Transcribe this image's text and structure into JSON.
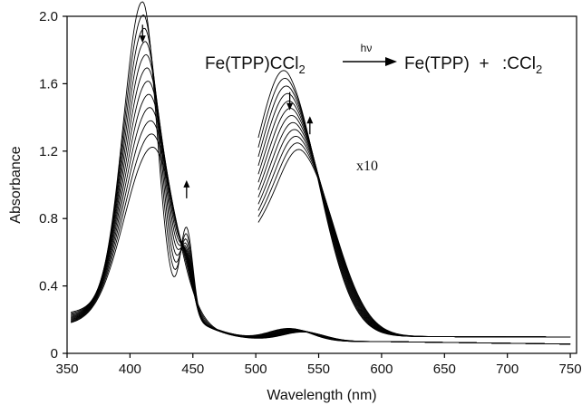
{
  "chart_data": {
    "type": "line",
    "xlabel": "Wavelength (nm)",
    "ylabel": "Absorbance",
    "xlim": [
      350,
      755
    ],
    "ylim": [
      0,
      2.0
    ],
    "x_ticks": [
      "350",
      "400",
      "450",
      "500",
      "550",
      "600",
      "650",
      "700",
      "750"
    ],
    "y_ticks": [
      "0",
      "0.4",
      "0.8",
      "1.2",
      "1.6",
      "2.0"
    ],
    "grid": false,
    "legend": "none",
    "reaction": {
      "reactant": "Fe(TPP)CCl",
      "reactant_sub": "2",
      "arrow_label": "hν",
      "product1": "Fe(TPP)",
      "plus": "+",
      "product2": ":CCl",
      "product2_sub": "2"
    },
    "scale_note": "x10",
    "series_count": 12,
    "first_spectrum": {
      "soret_peak": [
        410,
        1.8
      ],
      "sideband_peak": [
        445,
        0.75
      ],
      "q_band_x10_peak": [
        527,
        1.39
      ],
      "q_band_peak": [
        527,
        0.14
      ]
    },
    "last_spectrum": {
      "soret_peak": [
        418,
        1.03
      ],
      "q_band_x10_peak": [
        538,
        1.1
      ],
      "q_band_peak": [
        538,
        0.12
      ]
    },
    "annotations": [
      {
        "type": "arrow-down",
        "x": 410,
        "y": 1.95
      },
      {
        "type": "arrow-up",
        "x": 445,
        "y": 0.92
      },
      {
        "type": "arrow-down",
        "x": 527,
        "y": 1.55
      },
      {
        "type": "arrow-up",
        "x": 543,
        "y": 1.3
      }
    ]
  }
}
